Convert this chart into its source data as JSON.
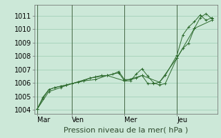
{
  "background_color": "#cce8d8",
  "grid_color": "#99ccb0",
  "line_color": "#2d6a2d",
  "ylabel": "Pression niveau de la mer( hPa )",
  "ylim": [
    1003.7,
    1011.8
  ],
  "yticks": [
    1004,
    1005,
    1006,
    1007,
    1008,
    1009,
    1010,
    1011
  ],
  "xtick_labels": [
    "Mar",
    "Ven",
    "Mer",
    "Jeu"
  ],
  "xtick_positions": [
    2,
    50,
    122,
    194
  ],
  "xlim": [
    -2,
    250
  ],
  "series1": {
    "x": [
      2,
      10,
      18,
      26,
      34,
      42,
      50,
      66,
      82,
      98,
      114,
      122,
      130,
      138,
      146,
      154,
      162,
      170,
      178,
      194,
      202,
      210,
      218,
      226,
      234,
      242
    ],
    "y": [
      1004.05,
      1004.85,
      1005.5,
      1005.65,
      1005.75,
      1005.85,
      1005.95,
      1006.15,
      1006.25,
      1006.55,
      1006.75,
      1006.15,
      1006.15,
      1006.65,
      1007.05,
      1006.5,
      1006.0,
      1005.85,
      1005.95,
      1007.85,
      1008.55,
      1008.95,
      1010.05,
      1010.85,
      1011.15,
      1010.75
    ]
  },
  "series2": {
    "x": [
      2,
      10,
      18,
      26,
      34,
      42,
      50,
      58,
      66,
      74,
      82,
      90,
      98,
      106,
      114,
      122,
      130,
      138,
      146,
      154,
      162,
      170,
      178,
      194,
      202,
      210,
      218,
      226,
      234,
      242
    ],
    "y": [
      1004.05,
      1004.95,
      1005.5,
      1005.65,
      1005.75,
      1005.85,
      1005.95,
      1006.05,
      1006.15,
      1006.35,
      1006.45,
      1006.55,
      1006.55,
      1006.65,
      1006.85,
      1006.25,
      1006.25,
      1006.35,
      1006.55,
      1005.95,
      1005.95,
      1006.05,
      1006.55,
      1008.05,
      1009.55,
      1010.15,
      1010.55,
      1011.05,
      1010.65,
      1010.85
    ]
  },
  "series3": {
    "x": [
      2,
      18,
      34,
      50,
      74,
      98,
      122,
      146,
      170,
      194,
      218,
      242
    ],
    "y": [
      1004.05,
      1005.35,
      1005.65,
      1005.95,
      1006.35,
      1006.55,
      1006.15,
      1006.55,
      1006.05,
      1007.85,
      1010.05,
      1010.65
    ]
  },
  "vline_positions": [
    2,
    50,
    122,
    194
  ],
  "vline_color": "#446644",
  "tick_fontsize": 7,
  "xlabel_fontsize": 8
}
